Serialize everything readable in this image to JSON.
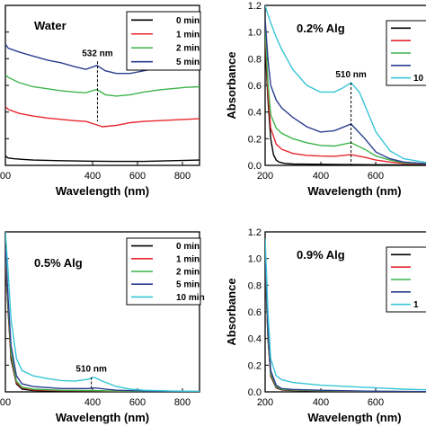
{
  "chart_data": [
    {
      "type": "line",
      "title": "Water",
      "xlabel": "Wavelength (nm)",
      "ylabel": "",
      "xlim": [
        200,
        900
      ],
      "ylim": [
        0,
        1.2
      ],
      "xticks": [
        "00",
        "400",
        "600",
        "800"
      ],
      "yticks": [],
      "legend": "top-right",
      "annotation": {
        "text": "532 nm",
        "x": 532,
        "y_top": 0.78,
        "y_bottom": 0.33
      },
      "series": [
        {
          "name": "0 min",
          "color": "#000000",
          "x": [
            200,
            210,
            230,
            260,
            300,
            400,
            500,
            600,
            700,
            800,
            900
          ],
          "y": [
            0.07,
            0.055,
            0.05,
            0.045,
            0.04,
            0.035,
            0.032,
            0.03,
            0.03,
            0.035,
            0.04
          ]
        },
        {
          "name": "1 min",
          "color": "#e8262d",
          "x": [
            200,
            210,
            250,
            300,
            350,
            400,
            450,
            490,
            520,
            550,
            600,
            650,
            700,
            750,
            800,
            850,
            900
          ],
          "y": [
            0.44,
            0.42,
            0.39,
            0.37,
            0.355,
            0.345,
            0.335,
            0.33,
            0.31,
            0.29,
            0.3,
            0.32,
            0.33,
            0.335,
            0.34,
            0.345,
            0.35
          ]
        },
        {
          "name": "2 min",
          "color": "#3cb44b",
          "x": [
            200,
            210,
            250,
            300,
            350,
            400,
            450,
            490,
            530,
            560,
            600,
            650,
            700,
            750,
            800,
            850,
            900
          ],
          "y": [
            0.68,
            0.66,
            0.62,
            0.59,
            0.575,
            0.56,
            0.55,
            0.545,
            0.57,
            0.53,
            0.52,
            0.53,
            0.55,
            0.565,
            0.575,
            0.585,
            0.59
          ]
        },
        {
          "name": "5 min",
          "color": "#2b3d8f",
          "x": [
            200,
            210,
            250,
            300,
            350,
            400,
            450,
            490,
            530,
            560,
            600,
            650,
            700,
            750,
            800,
            850,
            900
          ],
          "y": [
            0.91,
            0.88,
            0.85,
            0.82,
            0.79,
            0.77,
            0.74,
            0.72,
            0.75,
            0.71,
            0.69,
            0.69,
            0.71,
            0.73,
            0.75,
            0.765,
            0.78
          ]
        }
      ]
    },
    {
      "type": "line",
      "title": "0.2% Alg",
      "xlabel": "Wavelength (nm)",
      "ylabel": "Absorbance",
      "xlim": [
        200,
        800
      ],
      "ylim": [
        0,
        1.2
      ],
      "xticks": [
        "200",
        "400",
        "600"
      ],
      "yticks": [
        "0.0",
        "0.2",
        "0.4",
        "0.6",
        "0.8",
        "1.0",
        "1.2"
      ],
      "legend": "top-right",
      "annotation": {
        "text": "510 nm",
        "x": 510,
        "y_top": 0.62,
        "y_bottom": 0.0
      },
      "series": [
        {
          "name": "",
          "color": "#000000",
          "x": [
            200,
            210,
            220,
            230,
            240,
            250,
            270,
            300,
            400,
            500,
            600,
            700,
            800
          ],
          "y": [
            0.9,
            0.5,
            0.2,
            0.08,
            0.04,
            0.025,
            0.015,
            0.01,
            0.008,
            0.006,
            0.005,
            0.004,
            0.003
          ]
        },
        {
          "name": "",
          "color": "#e8262d",
          "x": [
            200,
            210,
            220,
            240,
            260,
            300,
            350,
            400,
            450,
            510,
            560,
            600,
            650,
            700,
            800
          ],
          "y": [
            1.0,
            0.55,
            0.28,
            0.16,
            0.12,
            0.09,
            0.075,
            0.07,
            0.068,
            0.08,
            0.06,
            0.04,
            0.025,
            0.015,
            0.008
          ]
        },
        {
          "name": "",
          "color": "#3cb44b",
          "x": [
            200,
            210,
            220,
            240,
            260,
            300,
            350,
            400,
            450,
            510,
            560,
            600,
            650,
            700,
            800
          ],
          "y": [
            1.05,
            0.62,
            0.38,
            0.28,
            0.24,
            0.2,
            0.17,
            0.15,
            0.145,
            0.17,
            0.12,
            0.07,
            0.04,
            0.02,
            0.01
          ]
        },
        {
          "name": "",
          "color": "#2b3d8f",
          "x": [
            200,
            210,
            220,
            240,
            260,
            300,
            350,
            400,
            450,
            510,
            560,
            600,
            650,
            700,
            800
          ],
          "y": [
            1.1,
            0.8,
            0.6,
            0.49,
            0.43,
            0.36,
            0.29,
            0.25,
            0.26,
            0.31,
            0.2,
            0.1,
            0.05,
            0.025,
            0.01
          ]
        },
        {
          "name": "10",
          "color": "#38c5d6",
          "x": [
            200,
            210,
            220,
            240,
            260,
            300,
            350,
            400,
            450,
            480,
            510,
            540,
            570,
            600,
            650,
            700,
            800
          ],
          "y": [
            1.2,
            1.13,
            1.07,
            0.96,
            0.87,
            0.72,
            0.6,
            0.55,
            0.55,
            0.58,
            0.62,
            0.55,
            0.4,
            0.25,
            0.11,
            0.05,
            0.015
          ]
        }
      ]
    },
    {
      "type": "line",
      "title": "0.5% Alg",
      "xlabel": "Wavelength (nm)",
      "ylabel": "",
      "xlim": [
        200,
        900
      ],
      "ylim": [
        0,
        1.2
      ],
      "xticks": [
        "00",
        "400",
        "600",
        "800"
      ],
      "yticks": [],
      "legend": "top-right",
      "annotation": {
        "text": "510 nm",
        "x": 510,
        "y_top": 0.11,
        "y_bottom": 0.02
      },
      "series": [
        {
          "name": "0 min",
          "color": "#000000",
          "x": [
            200,
            210,
            220,
            240,
            260,
            300,
            400,
            500,
            600,
            700,
            800,
            900
          ],
          "y": [
            1.0,
            0.6,
            0.25,
            0.06,
            0.02,
            0.01,
            0.005,
            0.004,
            0.003,
            0.003,
            0.002,
            0.002
          ]
        },
        {
          "name": "1 min",
          "color": "#e8262d",
          "x": [
            200,
            210,
            220,
            240,
            260,
            300,
            400,
            500,
            600,
            700,
            800,
            900
          ],
          "y": [
            1.0,
            0.62,
            0.28,
            0.07,
            0.03,
            0.015,
            0.01,
            0.008,
            0.005,
            0.004,
            0.003,
            0.002
          ]
        },
        {
          "name": "2 min",
          "color": "#3cb44b",
          "x": [
            200,
            210,
            220,
            240,
            260,
            300,
            400,
            500,
            600,
            700,
            800,
            900
          ],
          "y": [
            1.05,
            0.65,
            0.3,
            0.08,
            0.035,
            0.02,
            0.012,
            0.01,
            0.006,
            0.004,
            0.003,
            0.002
          ]
        },
        {
          "name": "5 min",
          "color": "#2b3d8f",
          "x": [
            200,
            210,
            220,
            240,
            260,
            300,
            400,
            500,
            520,
            600,
            700,
            800,
            900
          ],
          "y": [
            1.08,
            0.7,
            0.35,
            0.12,
            0.06,
            0.04,
            0.025,
            0.025,
            0.03,
            0.012,
            0.006,
            0.004,
            0.003
          ]
        },
        {
          "name": "10 min",
          "color": "#38c5d6",
          "x": [
            200,
            210,
            220,
            240,
            260,
            300,
            350,
            400,
            450,
            500,
            520,
            550,
            600,
            650,
            700,
            800,
            900
          ],
          "y": [
            1.2,
            0.9,
            0.55,
            0.25,
            0.16,
            0.12,
            0.1,
            0.085,
            0.08,
            0.095,
            0.11,
            0.08,
            0.04,
            0.02,
            0.012,
            0.006,
            0.004
          ]
        }
      ]
    },
    {
      "type": "line",
      "title": "0.9% Alg",
      "xlabel": "Wavelength (nm)",
      "ylabel": "Absorbance",
      "xlim": [
        200,
        800
      ],
      "ylim": [
        0,
        1.2
      ],
      "xticks": [
        "200",
        "400",
        "600"
      ],
      "yticks": [
        "0.0",
        "0.2",
        "0.4",
        "0.6",
        "0.8",
        "1.0",
        "1.2"
      ],
      "legend": "top-right",
      "series": [
        {
          "name": "",
          "color": "#000000",
          "x": [
            200,
            205,
            210,
            220,
            240,
            260,
            300,
            400,
            500,
            600,
            700,
            800
          ],
          "y": [
            1.0,
            0.7,
            0.4,
            0.12,
            0.03,
            0.015,
            0.01,
            0.006,
            0.004,
            0.003,
            0.002,
            0.002
          ]
        },
        {
          "name": "",
          "color": "#e8262d",
          "x": [
            200,
            205,
            210,
            220,
            240,
            260,
            300,
            400,
            500,
            600,
            700,
            800
          ],
          "y": [
            1.0,
            0.72,
            0.42,
            0.13,
            0.035,
            0.018,
            0.012,
            0.008,
            0.005,
            0.003,
            0.002,
            0.002
          ]
        },
        {
          "name": "",
          "color": "#3cb44b",
          "x": [
            200,
            205,
            210,
            220,
            240,
            260,
            300,
            400,
            500,
            600,
            700,
            800
          ],
          "y": [
            1.02,
            0.74,
            0.44,
            0.14,
            0.04,
            0.02,
            0.014,
            0.009,
            0.006,
            0.004,
            0.003,
            0.002
          ]
        },
        {
          "name": "",
          "color": "#2b3d8f",
          "x": [
            200,
            205,
            210,
            220,
            240,
            260,
            300,
            400,
            500,
            600,
            700,
            800
          ],
          "y": [
            1.05,
            0.78,
            0.48,
            0.16,
            0.05,
            0.025,
            0.018,
            0.012,
            0.008,
            0.005,
            0.003,
            0.002
          ]
        },
        {
          "name": "1",
          "color": "#38c5d6",
          "x": [
            200,
            205,
            210,
            220,
            240,
            260,
            300,
            350,
            400,
            500,
            600,
            700,
            800
          ],
          "y": [
            1.15,
            0.9,
            0.6,
            0.25,
            0.12,
            0.09,
            0.07,
            0.06,
            0.05,
            0.04,
            0.03,
            0.02,
            0.015
          ]
        }
      ]
    }
  ]
}
